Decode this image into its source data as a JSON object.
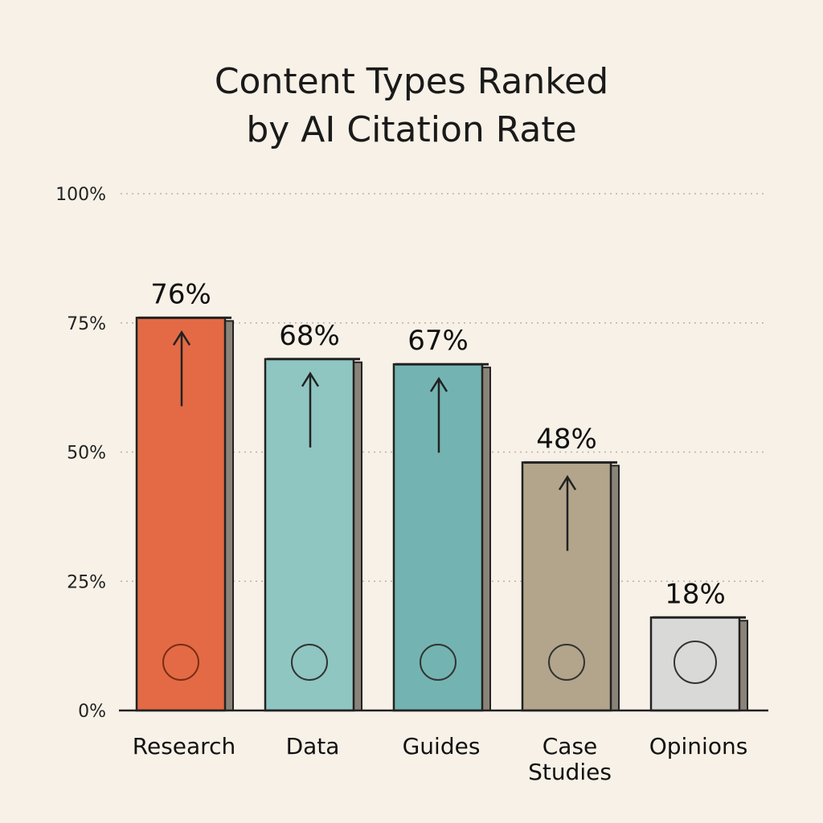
{
  "chart_data": {
    "type": "bar",
    "title": "Content Types Ranked by AI Citation Rate",
    "title_lines": [
      "Content Types Ranked",
      "by AI Citation Rate"
    ],
    "categories": [
      "Research",
      "Data",
      "Guides",
      "Case Studies",
      "Opinions"
    ],
    "category_lines": [
      [
        "Research"
      ],
      [
        "Data"
      ],
      [
        "Guides"
      ],
      [
        "Case",
        "Studies"
      ],
      [
        "Opinions"
      ]
    ],
    "values": [
      76,
      68,
      67,
      48,
      18
    ],
    "data_labels": [
      "76%",
      "68%",
      "67%",
      "48%",
      "18%"
    ],
    "colors": [
      "#e36a45",
      "#8fc6c1",
      "#73b4b2",
      "#b3a58b",
      "#d9d9d7"
    ],
    "icons": [
      "book-brain-magnifier-icon",
      "chart-gears-icon",
      "compass-map-icon",
      "folders-transfer-icon",
      "thought-bubble-question-icon"
    ],
    "ylim": [
      0,
      100
    ],
    "yticks": [
      0,
      25,
      50,
      75,
      100
    ],
    "ytick_labels": [
      "0%",
      "25%",
      "50%",
      "75%",
      "100%"
    ],
    "grid": true,
    "xlabel": "",
    "ylabel": ""
  }
}
